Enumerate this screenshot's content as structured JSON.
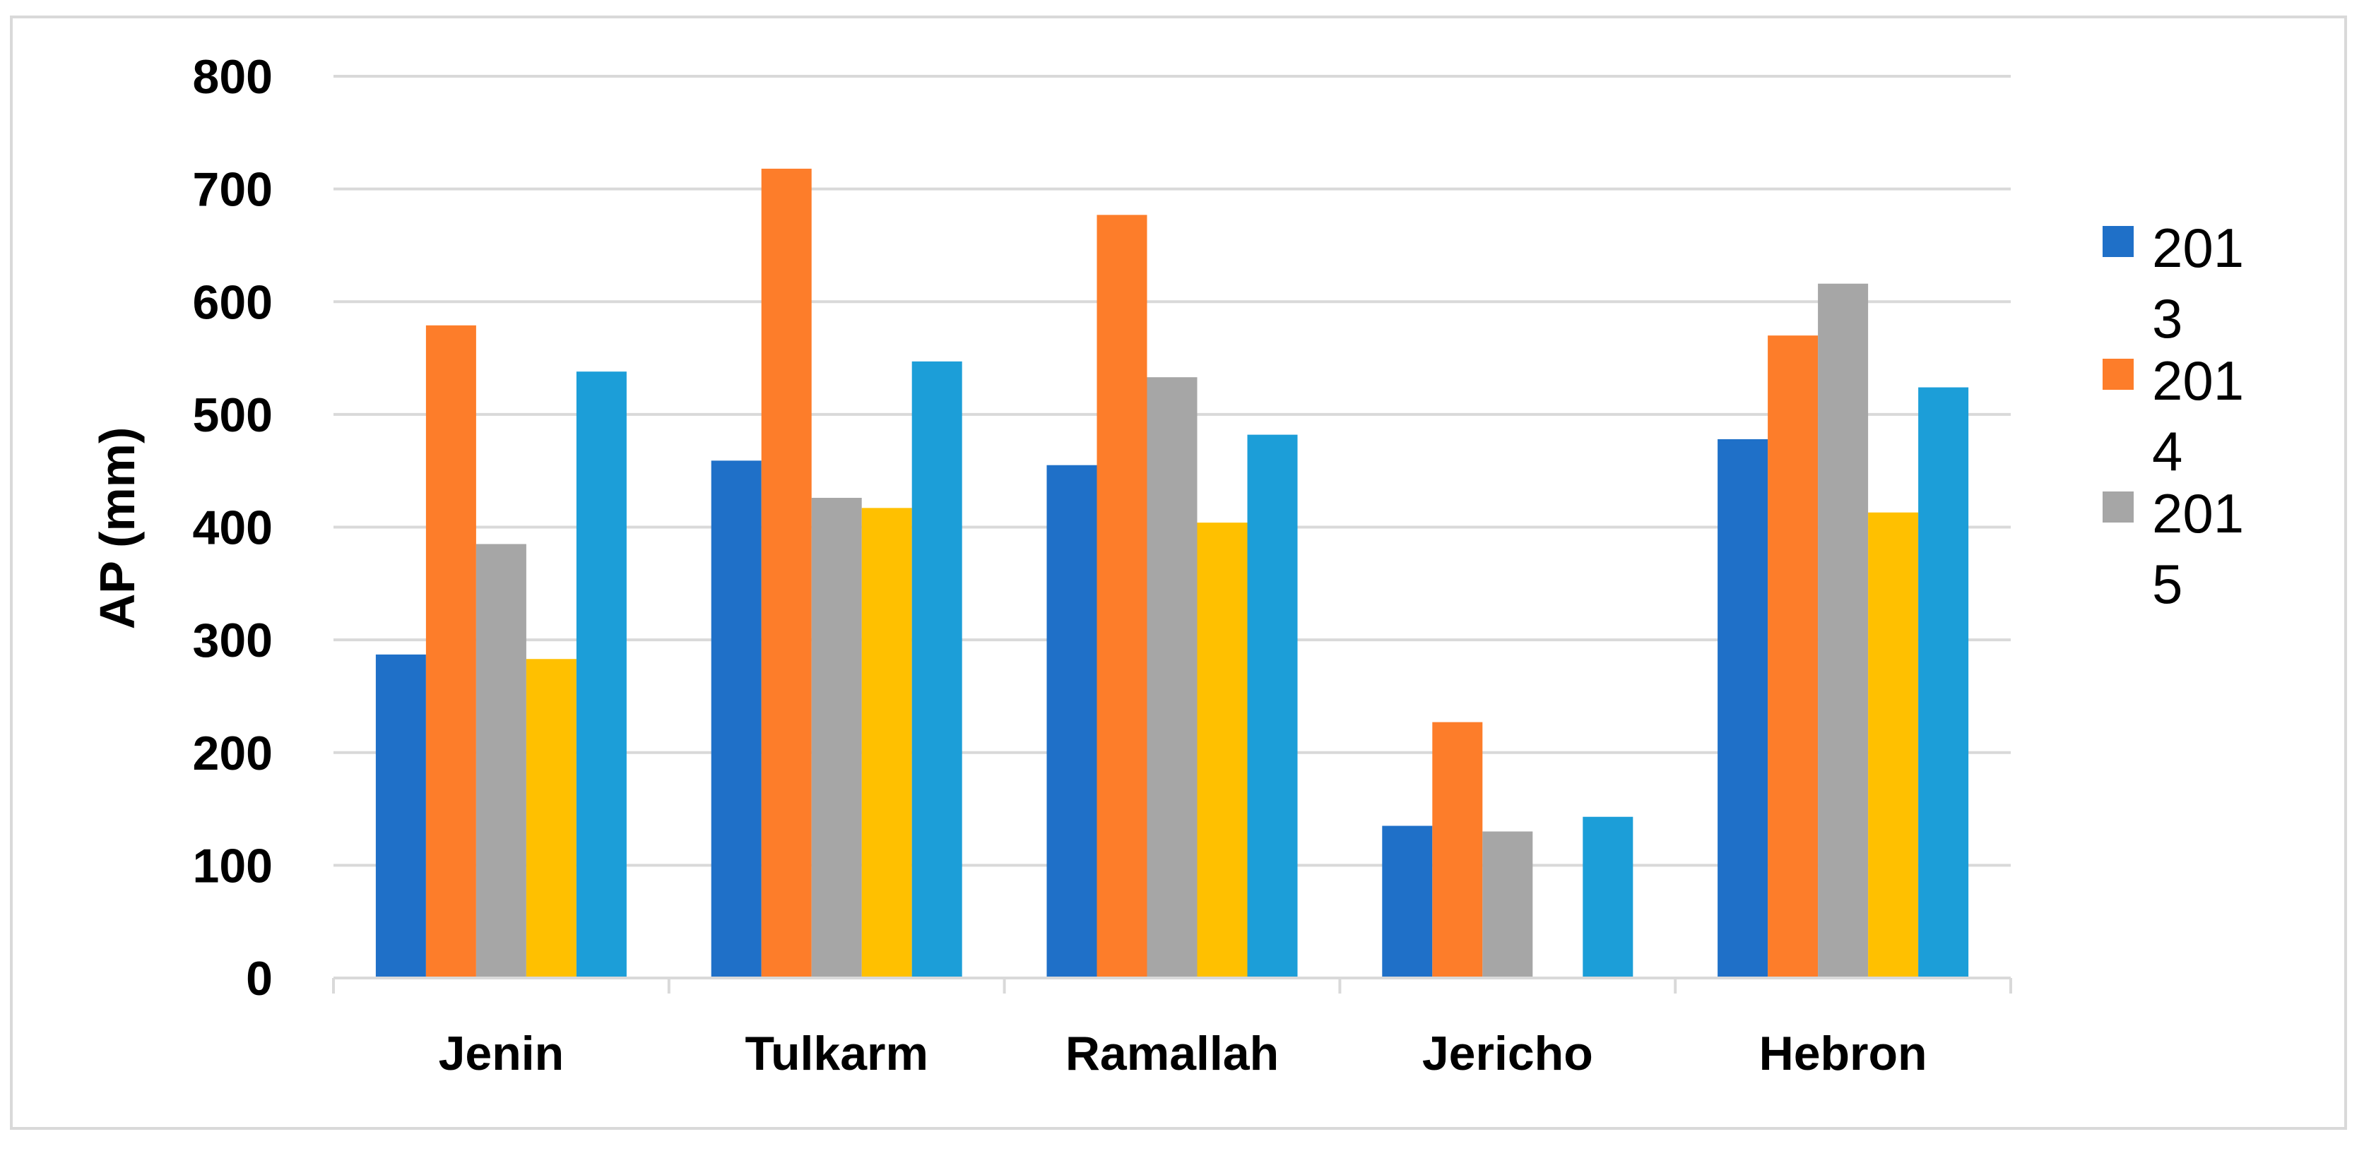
{
  "chart_data": {
    "type": "bar",
    "title": "",
    "xlabel": "",
    "ylabel": "AP (mm)",
    "ylim": [
      0,
      800
    ],
    "yticks": [
      0,
      100,
      200,
      300,
      400,
      500,
      600,
      700,
      800
    ],
    "grid": true,
    "legend_position": "right",
    "categories": [
      "Jenin",
      "Tulkarm",
      "Ramallah",
      "Jericho",
      "Hebron"
    ],
    "series": [
      {
        "name": "2013",
        "legend_lines": [
          "201",
          "3"
        ],
        "color": "#1f70c8",
        "values": [
          287,
          459,
          455,
          135,
          478
        ]
      },
      {
        "name": "2014",
        "legend_lines": [
          "201",
          "4"
        ],
        "color": "#fd7d2a",
        "values": [
          579,
          718,
          677,
          227,
          570
        ]
      },
      {
        "name": "2015",
        "legend_lines": [
          "201",
          "5"
        ],
        "color": "#a6a6a6",
        "values": [
          385,
          426,
          533,
          130,
          616
        ]
      },
      {
        "color": "#ffc000",
        "values": [
          283,
          417,
          404,
          0,
          413
        ]
      },
      {
        "color": "#1c9ed8",
        "values": [
          538,
          547,
          482,
          143,
          524
        ]
      }
    ]
  }
}
